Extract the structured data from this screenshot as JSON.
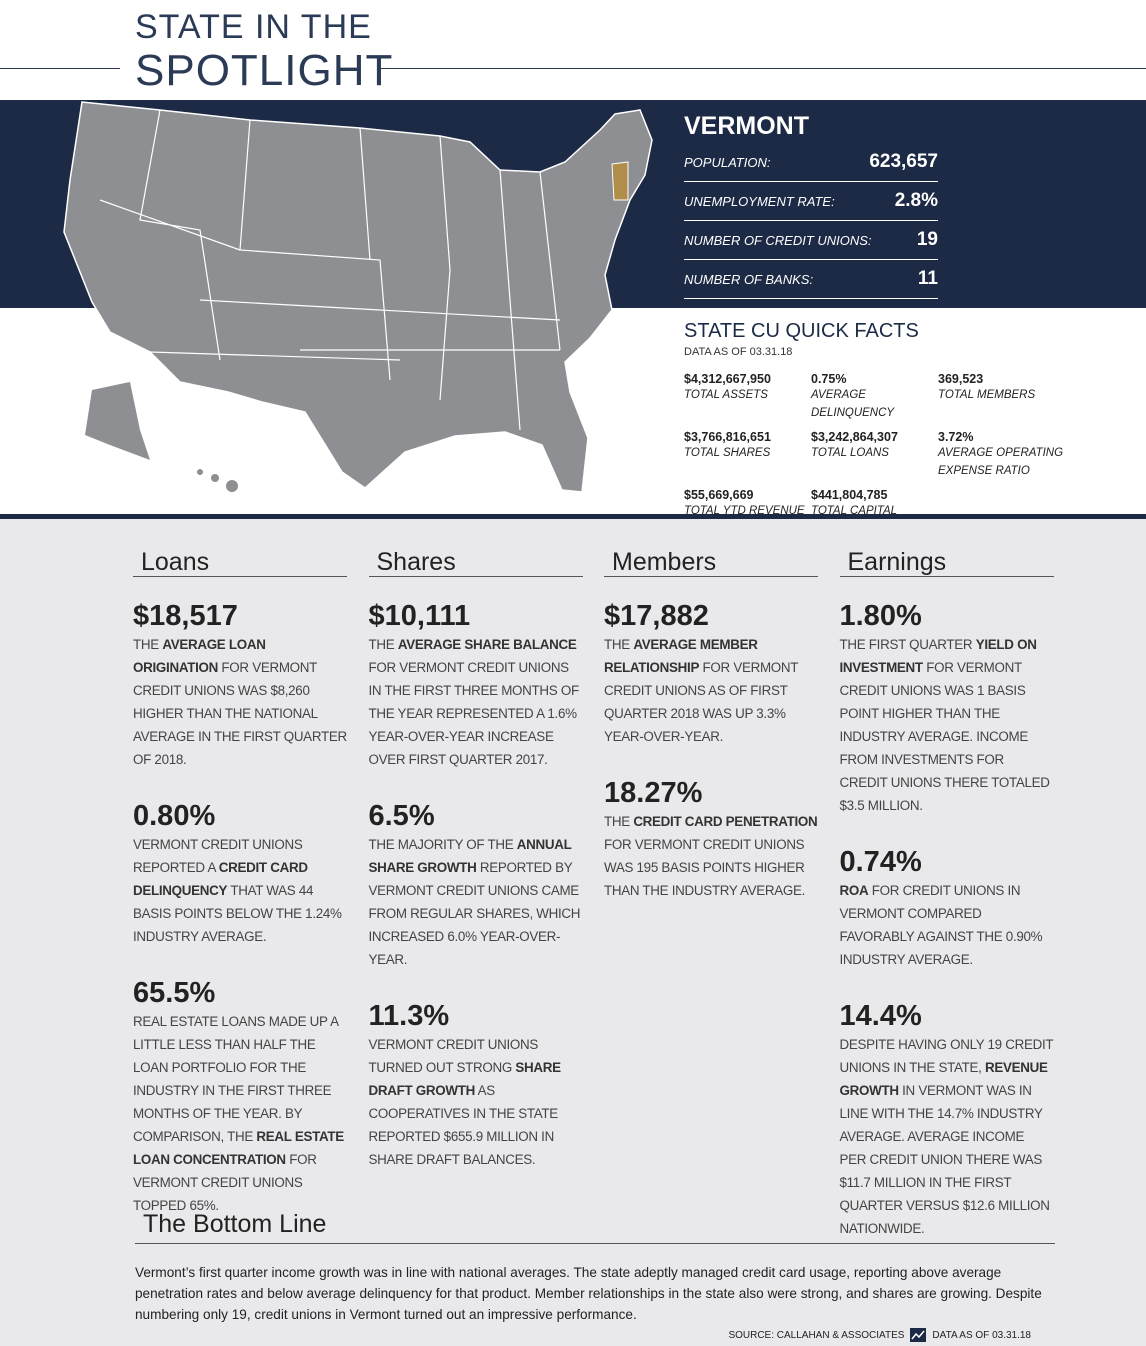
{
  "header": {
    "title_line1": "STATE IN THE",
    "title_line2": "SPOTLIGHT"
  },
  "state": {
    "name": "VERMONT",
    "stats": [
      {
        "label": "POPULATION:",
        "value": "623,657"
      },
      {
        "label": "UNEMPLOYMENT RATE:",
        "value": "2.8%"
      },
      {
        "label": "NUMBER OF CREDIT UNIONS:",
        "value": "19"
      },
      {
        "label": "NUMBER OF BANKS:",
        "value": "11"
      }
    ]
  },
  "quick_facts": {
    "title": "STATE CU QUICK FACTS",
    "note": "DATA AS OF 03.31.18",
    "items": [
      {
        "value": "$4,312,667,950",
        "label": "TOTAL ASSETS"
      },
      {
        "value": "0.75%",
        "label": "AVERAGE DELINQUENCY"
      },
      {
        "value": "369,523",
        "label": "TOTAL MEMBERS"
      },
      {
        "value": "$3,766,816,651",
        "label": "TOTAL SHARES"
      },
      {
        "value": "$3,242,864,307",
        "label": "TOTAL LOANS"
      },
      {
        "value": "3.72%",
        "label": "AVERAGE OPERATING EXPENSE RATIO"
      },
      {
        "value": "$55,669,669",
        "label": "TOTAL YTD REVENUE"
      },
      {
        "value": "$441,804,785",
        "label": "TOTAL CAPITAL"
      }
    ]
  },
  "sections": [
    {
      "heading": "Loans",
      "blocks": [
        {
          "stat": "$18,517",
          "text": [
            {
              "text": "THE "
            },
            {
              "text": "AVERAGE LOAN ORIGINATION",
              "bold": true
            },
            {
              "text": " FOR VERMONT CREDIT UNIONS WAS $8,260 HIGHER THAN THE NATIONAL AVERAGE IN THE FIRST QUARTER OF 2018."
            }
          ]
        },
        {
          "stat": "0.80%",
          "text": [
            {
              "text": "VERMONT CREDIT UNIONS REPORTED A "
            },
            {
              "text": "CREDIT CARD DELINQUENCY",
              "bold": true
            },
            {
              "text": " THAT WAS 44 BASIS POINTS BELOW THE 1.24% INDUSTRY AVERAGE."
            }
          ]
        },
        {
          "stat": "65.5%",
          "text": [
            {
              "text": "REAL ESTATE LOANS MADE UP A LITTLE LESS THAN HALF THE LOAN PORTFOLIO FOR THE INDUSTRY IN THE FIRST THREE MONTHS OF THE YEAR. BY COMPARISON, THE "
            },
            {
              "text": "REAL ESTATE LOAN CONCENTRATION",
              "bold": true
            },
            {
              "text": " FOR VERMONT CREDIT UNIONS TOPPED 65%."
            }
          ]
        }
      ]
    },
    {
      "heading": "Shares",
      "blocks": [
        {
          "stat": "$10,111",
          "text": [
            {
              "text": "THE "
            },
            {
              "text": "AVERAGE SHARE BALANCE",
              "bold": true
            },
            {
              "text": " FOR VERMONT CREDIT UNIONS IN THE FIRST THREE MONTHS OF THE YEAR REPRESENTED A 1.6% YEAR-OVER-YEAR INCREASE OVER FIRST QUARTER 2017."
            }
          ]
        },
        {
          "stat": "6.5%",
          "text": [
            {
              "text": "THE MAJORITY OF THE "
            },
            {
              "text": "ANNUAL SHARE GROWTH",
              "bold": true
            },
            {
              "text": " REPORTED BY VERMONT CREDIT UNIONS CAME FROM REGULAR SHARES, WHICH INCREASED 6.0% YEAR-OVER-YEAR."
            }
          ]
        },
        {
          "stat": "11.3%",
          "text": [
            {
              "text": "VERMONT CREDIT UNIONS TURNED OUT STRONG "
            },
            {
              "text": "SHARE DRAFT GROWTH",
              "bold": true
            },
            {
              "text": " AS COOPERATIVES IN THE STATE REPORTED $655.9 MILLION IN SHARE DRAFT BALANCES."
            }
          ]
        }
      ]
    },
    {
      "heading": "Members",
      "blocks": [
        {
          "stat": "$17,882",
          "text": [
            {
              "text": "THE "
            },
            {
              "text": "AVERAGE MEMBER RELATIONSHIP",
              "bold": true
            },
            {
              "text": " FOR VERMONT CREDIT UNIONS AS OF FIRST QUARTER 2018 WAS UP 3.3% YEAR-OVER-YEAR."
            }
          ]
        },
        {
          "stat": "18.27%",
          "text": [
            {
              "text": "THE "
            },
            {
              "text": "CREDIT CARD PENETRATION",
              "bold": true
            },
            {
              "text": " FOR VERMONT CREDIT UNIONS WAS 195 BASIS POINTS HIGHER THAN THE INDUSTRY AVERAGE."
            }
          ]
        }
      ]
    },
    {
      "heading": "Earnings",
      "blocks": [
        {
          "stat": "1.80%",
          "text": [
            {
              "text": "THE FIRST QUARTER "
            },
            {
              "text": "YIELD ON INVESTMENT",
              "bold": true
            },
            {
              "text": " FOR VERMONT CREDIT UNIONS WAS 1 BASIS POINT HIGHER THAN THE INDUSTRY AVERAGE. INCOME FROM INVESTMENTS FOR CREDIT UNIONS THERE TOTALED $3.5 MILLION."
            }
          ]
        },
        {
          "stat": "0.74%",
          "text": [
            {
              "text": "ROA",
              "bold": true
            },
            {
              "text": " FOR CREDIT UNIONS IN VERMONT COMPARED FAVORABLY AGAINST THE 0.90% INDUSTRY AVERAGE."
            }
          ]
        },
        {
          "stat": "14.4%",
          "text": [
            {
              "text": "DESPITE HAVING ONLY 19 CREDIT UNIONS IN THE STATE, "
            },
            {
              "text": "REVENUE GROWTH",
              "bold": true
            },
            {
              "text": " IN VERMONT WAS IN LINE WITH THE 14.7% INDUSTRY AVERAGE. AVERAGE INCOME PER CREDIT UNION THERE WAS $11.7 MILLION IN THE FIRST QUARTER VERSUS $12.6 MILLION NATIONWIDE."
            }
          ]
        }
      ]
    }
  ],
  "bottom_line": {
    "heading": "The Bottom Line",
    "text": "Vermont’s first quarter income growth was in line with national averages. The state adeptly managed credit card usage, reporting above average penetration rates and below average delinquency for that product. Member relationships in the state also were strong, and shares are growing. Despite numbering only 19, credit unions in Vermont turned out an impressive performance."
  },
  "footer": {
    "source": "SOURCE: CALLAHAN & ASSOCIATES",
    "data_note": "DATA AS OF 03.31.18"
  }
}
